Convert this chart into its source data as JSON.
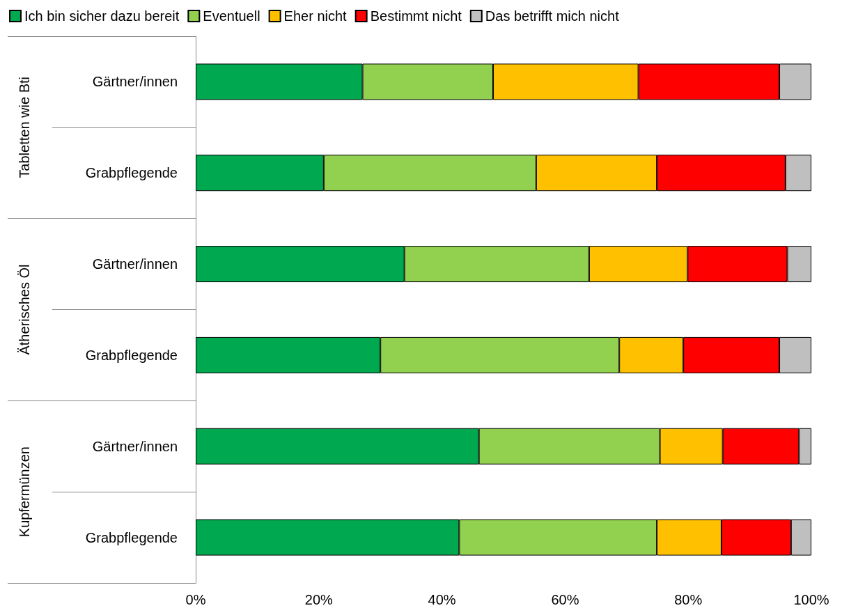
{
  "chart_data": {
    "type": "bar",
    "orientation": "horizontal",
    "stacked": true,
    "categories": [
      "Gärtner/innen",
      "Grabpflegende",
      "Gärtner/innen",
      "Grabpflegende",
      "Gärtner/innen",
      "Grabpflegende"
    ],
    "annotations": [
      "Tabletten wie Bti",
      "Ätherisches Öl",
      "Kupfermünzen"
    ],
    "series": [
      {
        "name": "Ich bin sicher dazu bereit",
        "color": "#00a84f",
        "values": [
          27.1,
          20.8,
          33.9,
          30.0,
          46.0,
          42.8
        ]
      },
      {
        "name": "Eventuell",
        "color": "#92d050",
        "values": [
          21.2,
          34.5,
          30.0,
          38.8,
          29.4,
          32.1
        ]
      },
      {
        "name": "Eher nicht",
        "color": "#ffc000",
        "values": [
          23.6,
          19.6,
          16.0,
          10.4,
          10.2,
          10.5
        ]
      },
      {
        "name": "Bestimmt nicht",
        "color": "#ff0000",
        "values": [
          22.9,
          20.9,
          16.2,
          15.6,
          12.4,
          11.3
        ]
      },
      {
        "name": "Das betrifft mich nicht",
        "color": "#bfbfbf",
        "values": [
          5.2,
          4.2,
          3.9,
          5.2,
          2.0,
          3.3
        ]
      }
    ],
    "xlim": [
      0,
      100
    ],
    "xticks": [
      {
        "value": 0,
        "label": "0%"
      },
      {
        "value": 20,
        "label": "20%"
      },
      {
        "value": 40,
        "label": "40%"
      },
      {
        "value": 60,
        "label": "60%"
      },
      {
        "value": 80,
        "label": "80%"
      },
      {
        "value": 100,
        "label": "100%"
      }
    ],
    "grid": false,
    "legend": "top"
  }
}
